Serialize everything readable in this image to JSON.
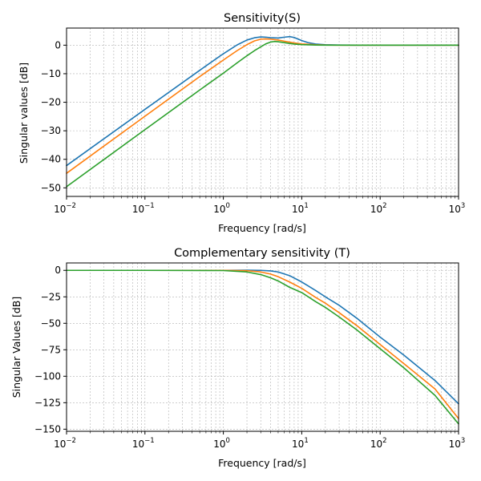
{
  "chart_data": [
    {
      "type": "line",
      "title": "Sensitivity(S)",
      "xlabel": "Frequency [rad/s]",
      "ylabel": "Singular values [dB]",
      "xscale": "log",
      "xlim": [
        0.01,
        1000
      ],
      "ylim": [
        -53,
        6
      ],
      "xticks": [
        "10^-2",
        "10^-1",
        "10^0",
        "10^1",
        "10^2",
        "10^3"
      ],
      "yticks": [
        0,
        -10,
        -20,
        -30,
        -40,
        -50
      ],
      "grid": true,
      "series": [
        {
          "color": "#1f77b4",
          "x": [
            0.01,
            0.1,
            0.5,
            1,
            1.5,
            2,
            2.5,
            3,
            3.5,
            4,
            5,
            6,
            7,
            8,
            10,
            12,
            15,
            20,
            30,
            50,
            100,
            1000
          ],
          "y": [
            -42.2,
            -22.5,
            -8.8,
            -3.0,
            0.1,
            1.8,
            2.6,
            2.9,
            2.8,
            2.6,
            2.5,
            2.8,
            3.0,
            2.7,
            1.6,
            0.9,
            0.4,
            0.15,
            0.05,
            0.0,
            0.0,
            0.0
          ]
        },
        {
          "color": "#ff7f0e",
          "x": [
            0.01,
            0.1,
            0.5,
            1,
            1.5,
            2,
            2.5,
            3,
            3.5,
            4,
            5,
            6,
            8,
            10,
            15,
            20,
            30,
            50,
            100,
            1000
          ],
          "y": [
            -44.9,
            -24.9,
            -11.0,
            -5.2,
            -1.9,
            0.2,
            1.5,
            2.1,
            2.2,
            2.1,
            1.8,
            1.4,
            0.8,
            0.45,
            0.15,
            0.05,
            0.0,
            0.0,
            0.0,
            0.0
          ]
        },
        {
          "color": "#2ca02c",
          "x": [
            0.01,
            0.1,
            0.5,
            1,
            1.5,
            2,
            2.5,
            3,
            3.5,
            4,
            4.5,
            5,
            6,
            7,
            8,
            10,
            15,
            20,
            30,
            50,
            100,
            1000
          ],
          "y": [
            -49.6,
            -29.6,
            -15.7,
            -9.8,
            -6.2,
            -3.7,
            -1.9,
            -0.6,
            0.5,
            1.1,
            1.3,
            1.2,
            0.9,
            0.6,
            0.4,
            0.2,
            0.05,
            0.0,
            0.0,
            0.0,
            0.0,
            0.0
          ]
        }
      ]
    },
    {
      "type": "line",
      "title": "Complementary sensitivity (T)",
      "xlabel": "Frequency [rad/s]",
      "ylabel": "Singular Values [dB]",
      "xscale": "log",
      "xlim": [
        0.01,
        1000
      ],
      "ylim": [
        -152,
        7
      ],
      "xticks": [
        "10^-2",
        "10^-1",
        "10^0",
        "10^1",
        "10^2",
        "10^3"
      ],
      "yticks": [
        0,
        -25,
        -50,
        -75,
        -100,
        -125,
        -150
      ],
      "grid": true,
      "series": [
        {
          "color": "#1f77b4",
          "x": [
            0.01,
            0.1,
            1,
            2,
            3,
            4,
            5,
            7,
            10,
            15,
            20,
            30,
            50,
            100,
            200,
            500,
            1000
          ],
          "y": [
            0.0,
            0.0,
            0.0,
            0.1,
            0.0,
            -0.5,
            -1.5,
            -5.0,
            -11.0,
            -19.0,
            -25.0,
            -33.0,
            -45.0,
            -63.0,
            -80.0,
            -104.0,
            -126.0
          ]
        },
        {
          "color": "#ff7f0e",
          "x": [
            0.01,
            0.1,
            1,
            2,
            3,
            4,
            5,
            7,
            10,
            15,
            20,
            30,
            50,
            100,
            200,
            500,
            1000
          ],
          "y": [
            0.0,
            0.0,
            0.0,
            -0.3,
            -1.5,
            -3.5,
            -6.0,
            -11.0,
            -17.0,
            -25.5,
            -31.0,
            -40.0,
            -52.0,
            -70.0,
            -88.0,
            -112.0,
            -140.0
          ]
        },
        {
          "color": "#2ca02c",
          "x": [
            0.01,
            0.1,
            1,
            2,
            3,
            4,
            5,
            7,
            10,
            15,
            20,
            30,
            50,
            100,
            200,
            500,
            1000
          ],
          "y": [
            0.0,
            0.0,
            -0.2,
            -1.5,
            -4.0,
            -7.0,
            -10.0,
            -16.0,
            -21.0,
            -29.5,
            -35.0,
            -44.0,
            -56.0,
            -74.0,
            -92.0,
            -118.0,
            -145.0
          ]
        }
      ]
    }
  ]
}
